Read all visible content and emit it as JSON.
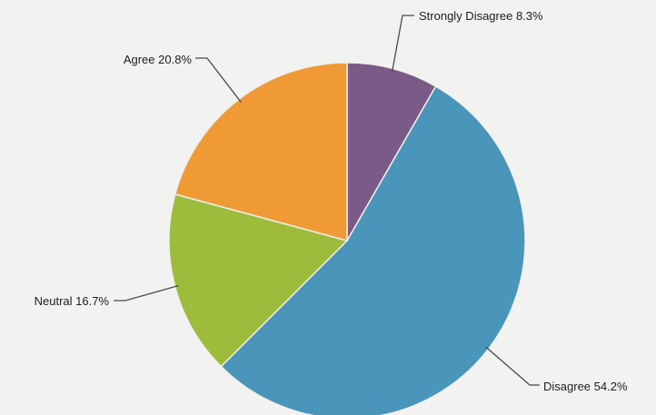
{
  "chart_data": {
    "type": "pie",
    "categories": [
      "Strongly Disagree",
      "Disagree",
      "Neutral",
      "Agree"
    ],
    "values": [
      8.3,
      54.2,
      16.7,
      20.8
    ],
    "labels": [
      "Strongly Disagree 8.3%",
      "Disagree 54.2%",
      "Neutral 16.7%",
      "Agree 20.8%"
    ],
    "colors": [
      "#7a5a86",
      "#4a95ba",
      "#9ebc3c",
      "#f09a36"
    ],
    "start_angle_deg": 0,
    "direction": "clockwise",
    "legend": "none",
    "title": ""
  }
}
